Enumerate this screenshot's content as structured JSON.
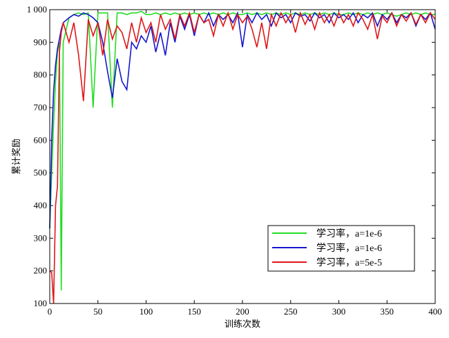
{
  "chart_data": {
    "type": "line",
    "xlabel": "训练次数",
    "ylabel": "累计奖励",
    "x": [
      0,
      2,
      4,
      6,
      8,
      10,
      12,
      14,
      20,
      25,
      30,
      35,
      40,
      45,
      50,
      55,
      60,
      65,
      70,
      75,
      80,
      85,
      90,
      95,
      100,
      105,
      110,
      115,
      120,
      125,
      130,
      135,
      140,
      145,
      150,
      155,
      160,
      165,
      170,
      175,
      180,
      185,
      190,
      195,
      200,
      205,
      210,
      215,
      220,
      225,
      230,
      235,
      240,
      245,
      250,
      255,
      260,
      265,
      270,
      275,
      280,
      285,
      290,
      295,
      300,
      305,
      310,
      315,
      320,
      325,
      330,
      335,
      340,
      345,
      350,
      355,
      360,
      365,
      370,
      375,
      380,
      385,
      390,
      395,
      400
    ],
    "series": [
      {
        "name": "学习率，a=1e-6",
        "color": "#22dd22",
        "values": [
          330,
          500,
          650,
          780,
          870,
          900,
          140,
          900,
          975,
          985,
          990,
          985,
          990,
          700,
          990,
          990,
          990,
          700,
          990,
          990,
          985,
          990,
          990,
          995,
          985,
          985,
          990,
          985,
          990,
          985,
          990,
          985,
          990,
          985,
          990,
          985,
          990,
          985,
          990,
          985,
          990,
          985,
          990,
          985,
          985,
          990,
          985,
          990,
          985,
          990,
          985,
          990,
          985,
          990,
          985,
          990,
          985,
          990,
          985,
          990,
          985,
          990,
          985,
          990,
          985,
          985,
          990,
          985,
          990,
          985,
          990,
          985,
          990,
          985,
          990,
          985,
          980,
          985,
          990,
          985,
          990,
          985,
          990,
          985,
          985
        ]
      },
      {
        "name": "学习率，a=1e-6",
        "color": "#1515cc",
        "values": [
          330,
          600,
          750,
          830,
          880,
          910,
          940,
          960,
          975,
          985,
          980,
          990,
          985,
          975,
          960,
          900,
          810,
          730,
          850,
          780,
          755,
          900,
          880,
          920,
          900,
          950,
          870,
          930,
          860,
          960,
          900,
          980,
          940,
          985,
          920,
          985,
          960,
          990,
          950,
          985,
          970,
          985,
          960,
          990,
          885,
          985,
          960,
          990,
          970,
          985,
          950,
          990,
          975,
          985,
          960,
          990,
          980,
          985,
          965,
          990,
          975,
          985,
          960,
          990,
          975,
          985,
          970,
          990,
          960,
          985,
          975,
          990,
          950,
          985,
          970,
          990,
          960,
          985,
          975,
          990,
          950,
          985,
          970,
          990,
          940
        ]
      },
      {
        "name": "学习率，a=5e-5",
        "color": "#e01515",
        "values": [
          200,
          195,
          100,
          400,
          460,
          870,
          930,
          960,
          900,
          960,
          860,
          720,
          970,
          920,
          960,
          860,
          970,
          910,
          950,
          930,
          880,
          960,
          900,
          975,
          930,
          960,
          900,
          985,
          940,
          970,
          910,
          985,
          950,
          990,
          930,
          985,
          960,
          970,
          920,
          985,
          950,
          990,
          940,
          985,
          960,
          980,
          940,
          885,
          960,
          880,
          985,
          950,
          990,
          960,
          985,
          930,
          990,
          955,
          985,
          940,
          990,
          960,
          985,
          950,
          990,
          960,
          985,
          950,
          990,
          970,
          940,
          985,
          910,
          980,
          960,
          990,
          950,
          985,
          965,
          990,
          955,
          985,
          960,
          990,
          970
        ]
      }
    ],
    "xlim": [
      0,
      400
    ],
    "xticks": [
      0,
      50,
      100,
      150,
      200,
      250,
      300,
      350,
      400
    ],
    "ylim": [
      100,
      1000
    ],
    "yticks": [
      100,
      200,
      300,
      400,
      500,
      600,
      700,
      800,
      900,
      {
        "value": 1000,
        "label": "1 000"
      }
    ],
    "legend": "lower-right"
  }
}
